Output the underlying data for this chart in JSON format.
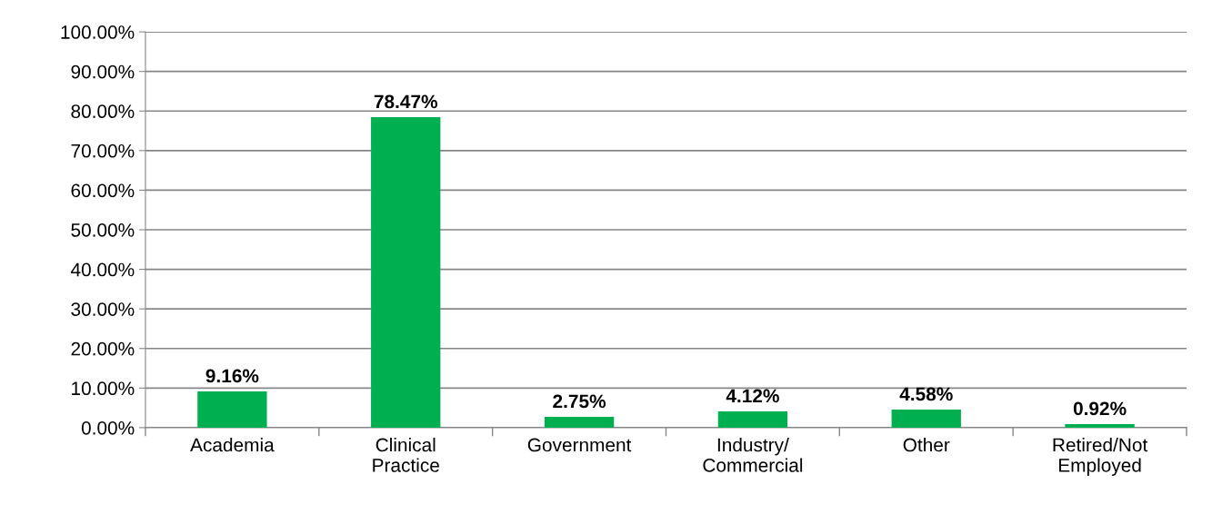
{
  "chart_data": {
    "type": "bar",
    "categories": [
      "Academia",
      "Clinical\nPractice",
      "Government",
      "Industry/\nCommercial",
      "Other",
      "Retired/Not\nEmployed"
    ],
    "values": [
      9.16,
      78.47,
      2.75,
      4.12,
      4.58,
      0.92
    ],
    "value_labels": [
      "9.16%",
      "78.47%",
      "2.75%",
      "4.12%",
      "4.58%",
      "0.92%"
    ],
    "color": "#00b050",
    "ylim": [
      0,
      100
    ],
    "yticks": [
      {
        "value": 0,
        "label": "0.00%"
      },
      {
        "value": 10,
        "label": "10.00%"
      },
      {
        "value": 20,
        "label": "20.00%"
      },
      {
        "value": 30,
        "label": "30.00%"
      },
      {
        "value": 40,
        "label": "40.00%"
      },
      {
        "value": 50,
        "label": "50.00%"
      },
      {
        "value": 60,
        "label": "60.00%"
      },
      {
        "value": 70,
        "label": "70.00%"
      },
      {
        "value": 80,
        "label": "80.00%"
      },
      {
        "value": 90,
        "label": "90.00%"
      },
      {
        "value": 100,
        "label": "100.00%"
      }
    ],
    "grid": "y",
    "legend": false
  }
}
